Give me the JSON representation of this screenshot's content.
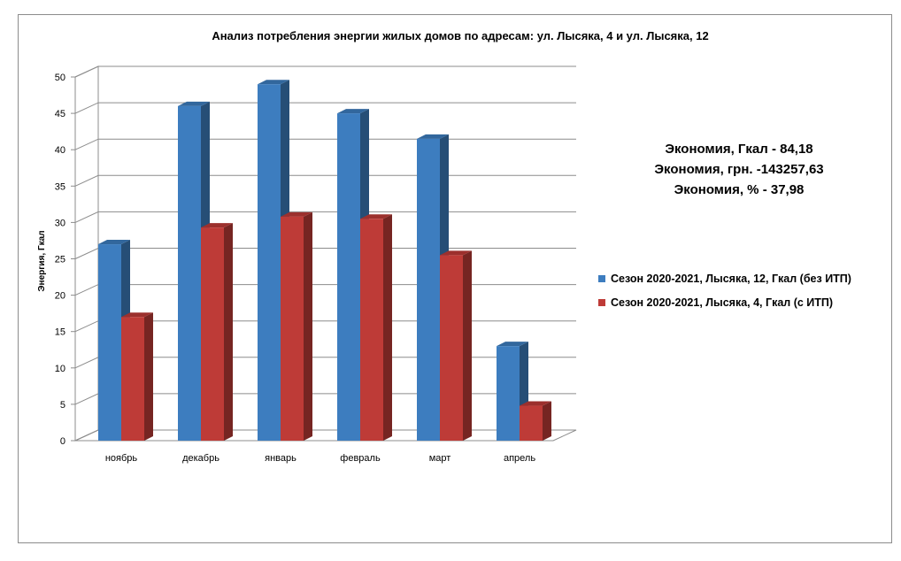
{
  "chart_data": {
    "type": "bar",
    "title": "Анализ потребления энергии жилых домов по адресам: ул. Лысяка, 4 и ул. Лысяка, 12",
    "xlabel": "",
    "ylabel": "Энергия, Гкал",
    "ylim": [
      0,
      50
    ],
    "yticks": [
      "0",
      "5",
      "10",
      "15",
      "20",
      "25",
      "30",
      "35",
      "40",
      "45",
      "50"
    ],
    "grid": true,
    "legend_position": "right",
    "categories": [
      "ноябрь",
      "декабрь",
      "январь",
      "февраль",
      "март",
      "апрель"
    ],
    "series": [
      {
        "name": "Сезон 2020-2021, Лысяка, 12, Гкал (без ИТП)",
        "color": "#3d7dbf",
        "values": [
          27,
          46,
          49,
          45,
          41.5,
          13
        ]
      },
      {
        "name": "Сезон 2020-2021, Лысяка, 4, Гкал (с ИТП)",
        "color": "#be3b37",
        "values": [
          17,
          29.3,
          30.8,
          30.5,
          25.5,
          4.8
        ]
      }
    ],
    "annotations": [
      "Экономия, Гкал - 84,18",
      "Экономия, грн. -143257,63",
      "Экономия, % - 37,98"
    ]
  }
}
